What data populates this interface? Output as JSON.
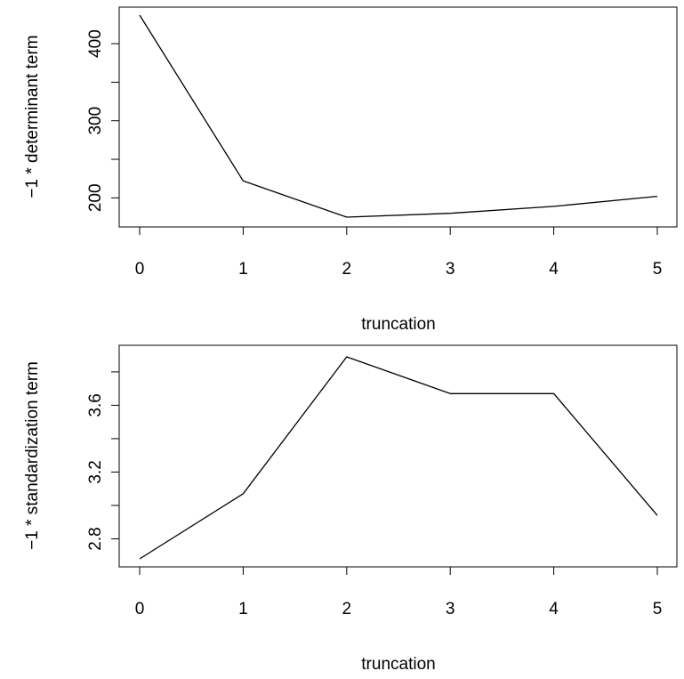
{
  "chart_data": [
    {
      "type": "line",
      "title": "",
      "xlabel": "truncation",
      "ylabel": "−1 * determinant term",
      "x": [
        0,
        1,
        2,
        3,
        4,
        5
      ],
      "series": [
        {
          "values": [
            437,
            222,
            175,
            180,
            189,
            202
          ]
        }
      ],
      "xlim": [
        0,
        5
      ],
      "ylim": [
        175,
        437
      ],
      "xticks": [
        0,
        1,
        2,
        3,
        4,
        5
      ],
      "xtick_labels": [
        "0",
        "1",
        "2",
        "3",
        "4",
        "5"
      ],
      "yticks": [
        200,
        250,
        300,
        350,
        400
      ],
      "ytick_labels": [
        "200",
        "",
        "300",
        "",
        "400"
      ],
      "grid": false,
      "line_color": "#000000"
    },
    {
      "type": "line",
      "title": "",
      "xlabel": "truncation",
      "ylabel": "−1 * standardization term",
      "x": [
        0,
        1,
        2,
        3,
        4,
        5
      ],
      "series": [
        {
          "values": [
            2.68,
            3.07,
            3.89,
            3.67,
            3.67,
            2.94
          ]
        }
      ],
      "xlim": [
        0,
        5
      ],
      "ylim": [
        2.68,
        3.89
      ],
      "xticks": [
        0,
        1,
        2,
        3,
        4,
        5
      ],
      "xtick_labels": [
        "0",
        "1",
        "2",
        "3",
        "4",
        "5"
      ],
      "yticks": [
        2.8,
        3.0,
        3.2,
        3.4,
        3.6,
        3.8
      ],
      "ytick_labels": [
        "2.8",
        "",
        "3.2",
        "",
        "3.6",
        ""
      ],
      "grid": false,
      "line_color": "#000000"
    }
  ]
}
